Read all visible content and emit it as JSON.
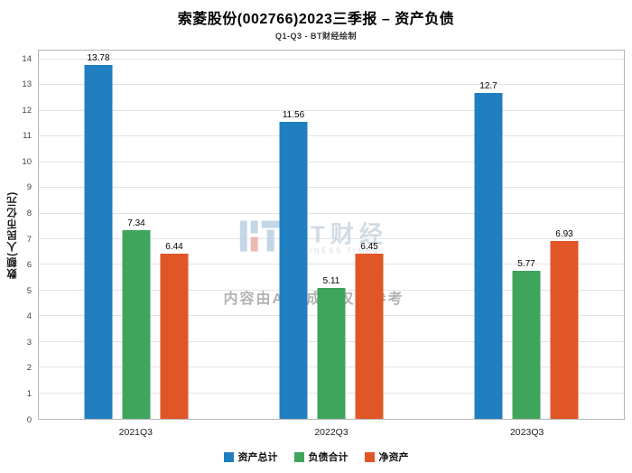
{
  "title": "索菱股份(002766)2023三季报 – 资产负债",
  "subtitle": "Q1-Q3 - BT财经绘制",
  "watermark": {
    "brand": "BT财经",
    "brand_sub": "BUSINESS TIMES",
    "notice": "内容由AI生成，仅供参考"
  },
  "chart_data": {
    "type": "bar",
    "title": "索菱股份(002766)2023三季报 – 资产负债",
    "subtitle": "Q1-Q3 - BT财经绘制",
    "categories": [
      "2021Q3",
      "2022Q3",
      "2023Q3"
    ],
    "series": [
      {
        "name": "资产总计",
        "color": "#1f7fc0",
        "values": [
          13.78,
          11.56,
          12.7
        ]
      },
      {
        "name": "负债合计",
        "color": "#3fa45c",
        "values": [
          7.34,
          5.11,
          5.77
        ]
      },
      {
        "name": "净资产",
        "color": "#e05627",
        "values": [
          6.44,
          6.45,
          6.93
        ]
      }
    ],
    "xlabel": "",
    "ylabel": "数额(人民币亿元)",
    "ylim": [
      0,
      14.35
    ],
    "ytick_step": 1,
    "grid": true,
    "legend_position": "bottom"
  }
}
